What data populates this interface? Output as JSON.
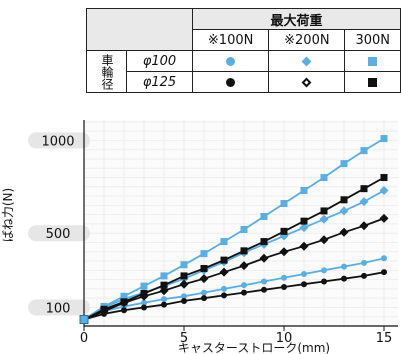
{
  "legend_table": {
    "header": "最大荷重",
    "columns": [
      "※100N",
      "※200N",
      "300N"
    ],
    "row_group": "車輪径",
    "rows": [
      {
        "label": "φ100"
      },
      {
        "label": "φ125"
      }
    ]
  },
  "colors": {
    "light_blue": "#5aaee0",
    "black": "#111111",
    "grid": "#eeeeee",
    "pill": "#e6e6e6"
  },
  "chart_data": {
    "type": "line",
    "xlabel": "キャスターストローク(mm)",
    "ylabel": "ばね力(N)",
    "xlim": [
      0,
      15
    ],
    "ylim": [
      0,
      1110
    ],
    "x_ticks": [
      0,
      5,
      10,
      15
    ],
    "y_ticks": [
      100,
      500,
      1000
    ],
    "x": [
      0,
      1,
      2,
      3,
      4,
      5,
      6,
      7,
      8,
      9,
      10,
      11,
      12,
      13,
      14,
      15
    ],
    "series": [
      {
        "wheel": "φ100",
        "load": "※100N",
        "marker": "circle",
        "color": "#5aaee0",
        "values": [
          35,
          80,
          105,
          125,
          145,
          160,
          180,
          200,
          220,
          240,
          260,
          280,
          300,
          320,
          340,
          365
        ]
      },
      {
        "wheel": "φ100",
        "load": "※200N",
        "marker": "diamond",
        "color": "#5aaee0",
        "values": [
          35,
          100,
          145,
          180,
          215,
          255,
          300,
          345,
          395,
          440,
          485,
          530,
          575,
          620,
          670,
          730
        ]
      },
      {
        "wheel": "φ100",
        "load": "300N",
        "marker": "square",
        "color": "#5aaee0",
        "values": [
          35,
          105,
          160,
          215,
          270,
          330,
          390,
          455,
          520,
          590,
          660,
          730,
          800,
          875,
          945,
          1010
        ]
      },
      {
        "wheel": "φ125",
        "load": "※100N",
        "marker": "circle",
        "color": "#111111",
        "values": [
          35,
          65,
          85,
          100,
          115,
          135,
          150,
          165,
          180,
          195,
          210,
          225,
          240,
          255,
          270,
          290
        ]
      },
      {
        "wheel": "φ125",
        "load": "※200N",
        "marker": "diamond-open",
        "color": "#111111",
        "values": [
          35,
          80,
          125,
          160,
          190,
          225,
          255,
          290,
          325,
          365,
          400,
          430,
          465,
          505,
          540,
          580
        ]
      },
      {
        "wheel": "φ125",
        "load": "300N",
        "marker": "square",
        "color": "#111111",
        "values": [
          35,
          90,
          130,
          175,
          220,
          270,
          310,
          355,
          405,
          455,
          510,
          565,
          620,
          680,
          740,
          800
        ]
      }
    ]
  }
}
